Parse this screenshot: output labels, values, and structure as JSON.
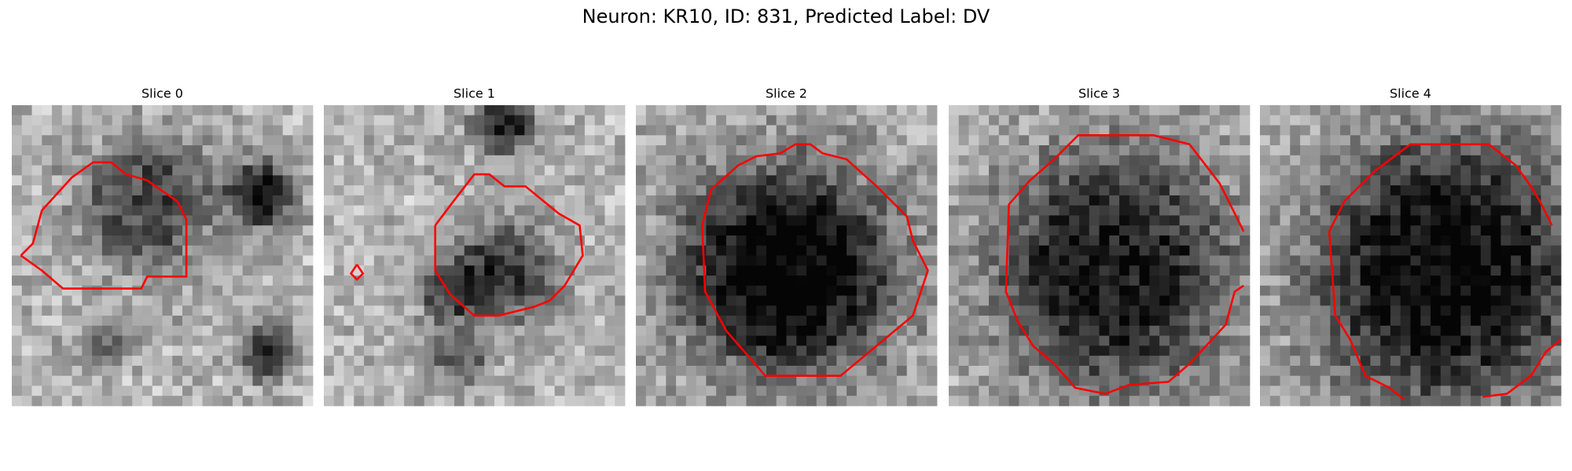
{
  "title": "Neuron: KR10, ID: 831, Predicted Label: DV",
  "panels": [
    {
      "title": "Slice 0"
    },
    {
      "title": "Slice 1"
    },
    {
      "title": "Slice 2"
    },
    {
      "title": "Slice 3"
    },
    {
      "title": "Slice 4"
    }
  ]
}
